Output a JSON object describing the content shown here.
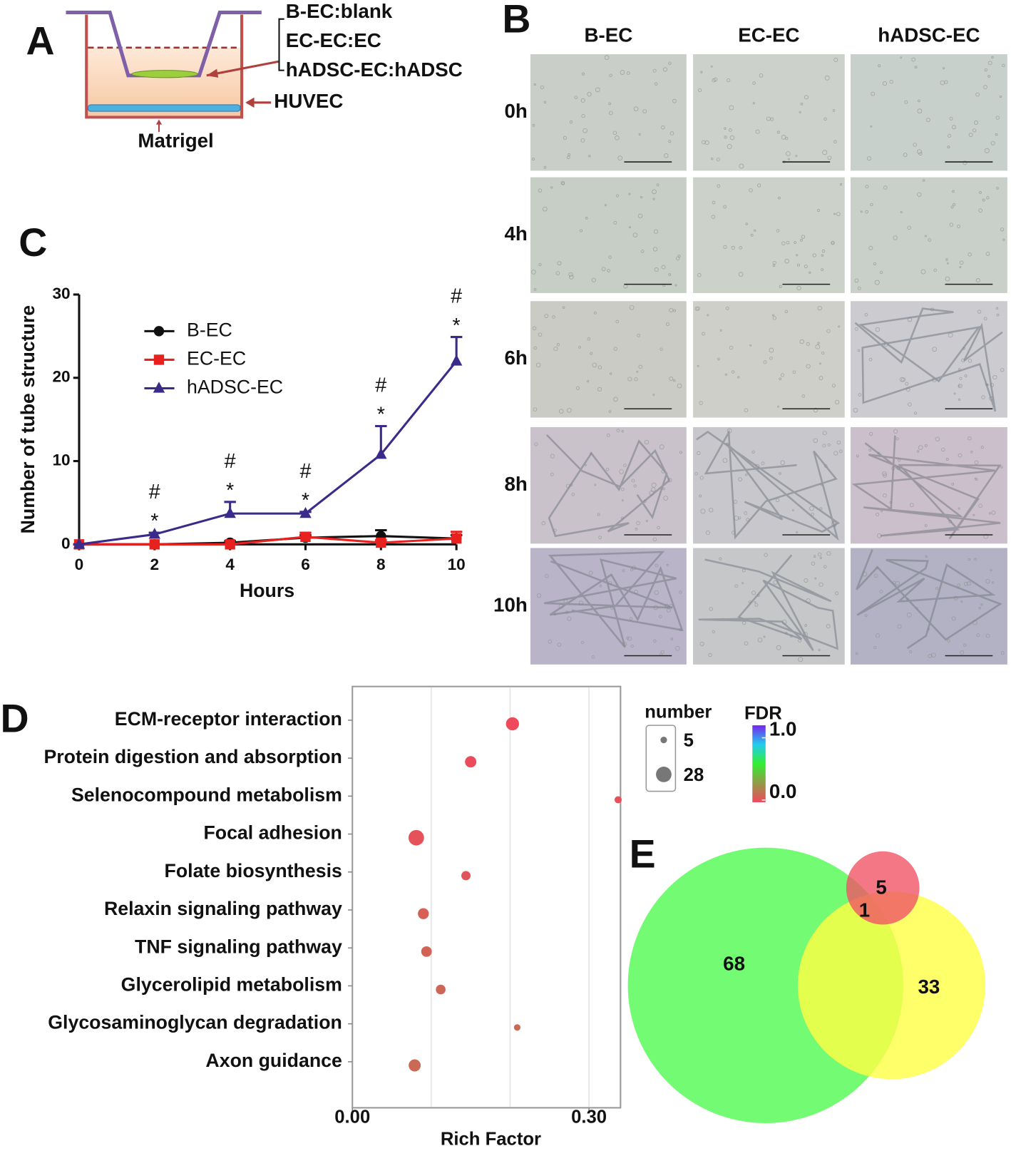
{
  "panel_labels": [
    "A",
    "B",
    "C",
    "D",
    "E"
  ],
  "diagram": {
    "labels": [
      "B-EC:blank",
      "EC-EC:EC",
      "hADSC-EC:hADSC",
      "HUVEC",
      "Matrigel"
    ]
  },
  "micrographs": {
    "columns": [
      "B-EC",
      "EC-EC",
      "hADSC-EC"
    ],
    "rows": [
      "0h",
      "4h",
      "6h",
      "8h",
      "10h"
    ]
  },
  "chart_data": [
    {
      "type": "line",
      "xlabel": "Hours",
      "ylabel": "Number of tube structure",
      "x": [
        0,
        2,
        4,
        6,
        8,
        10
      ],
      "xlim": [
        0,
        10
      ],
      "xticks": [
        0,
        2,
        4,
        6,
        8,
        10
      ],
      "ylim": [
        0,
        30
      ],
      "yticks": [
        0,
        10,
        20,
        30
      ],
      "series": [
        {
          "name": "B-EC",
          "color": "#111111",
          "marker": "circle",
          "values": [
            0,
            0,
            0.2,
            0.8,
            1,
            0.7
          ],
          "errors": [
            0,
            0,
            0.2,
            0.3,
            0.7,
            0.4
          ]
        },
        {
          "name": "EC-EC",
          "color": "#e8211f",
          "marker": "square",
          "values": [
            0,
            0,
            0,
            0.9,
            0.2,
            0.7
          ],
          "errors": [
            0,
            0,
            0,
            0.5,
            0.3,
            0.8
          ]
        },
        {
          "name": "hADSC-EC",
          "color": "#3c2a8a",
          "marker": "triangle",
          "values": [
            0,
            1.2,
            3.7,
            3.7,
            10.8,
            22
          ],
          "errors": [
            0,
            0.2,
            1.4,
            0.2,
            3.4,
            2.9
          ]
        }
      ],
      "annotations": [
        {
          "x": 2,
          "labels": [
            "#",
            "*"
          ]
        },
        {
          "x": 4,
          "labels": [
            "#",
            "*"
          ]
        },
        {
          "x": 6,
          "labels": [
            "#",
            "*"
          ]
        },
        {
          "x": 8,
          "labels": [
            "#",
            "*"
          ]
        },
        {
          "x": 10,
          "labels": [
            "#",
            "*"
          ]
        }
      ]
    },
    {
      "type": "bubble",
      "xlabel": "Rich Factor",
      "categories": [
        "ECM-receptor interaction",
        "Protein digestion and absorption",
        "Selenocompound metabolism",
        "Focal adhesion",
        "Folate biosynthesis",
        "Relaxin signaling pathway",
        "TNF signaling pathway",
        "Glycerolipid metabolism",
        "Glycosaminoglycan degradation",
        "Axon guidance"
      ],
      "values": [
        0.203,
        0.15,
        0.337,
        0.081,
        0.144,
        0.09,
        0.094,
        0.112,
        0.209,
        0.079
      ],
      "sizes": [
        20,
        15,
        6,
        28,
        10,
        14,
        13,
        11,
        5,
        17
      ],
      "fdr": [
        0.005,
        0.01,
        0.02,
        0.03,
        0.04,
        0.07,
        0.08,
        0.09,
        0.1,
        0.1
      ],
      "xlim": [
        0,
        0.34
      ],
      "xticks": [
        {
          "value": 0,
          "label": "0.00"
        },
        {
          "value": 0.3,
          "label": "0.30"
        }
      ],
      "grid_lines": [
        0.1,
        0.2,
        0.3
      ],
      "colorscale": [
        [
          0,
          "#f0485c"
        ],
        [
          0.5,
          "#33ee33"
        ],
        [
          0.75,
          "#22ccee"
        ],
        [
          1,
          "#7722ee"
        ]
      ],
      "size_legend": {
        "title": "number",
        "values": [
          5,
          28
        ]
      },
      "color_legend": {
        "title": "FDR",
        "ticks": [
          {
            "value": 1,
            "label": "1.0"
          },
          {
            "value": 0,
            "label": "0.0"
          }
        ]
      }
    },
    {
      "type": "venn",
      "colors": [
        "#6dfb6d",
        "#ffff44",
        "#f05565"
      ],
      "values": [
        68,
        5,
        1,
        33
      ]
    }
  ]
}
